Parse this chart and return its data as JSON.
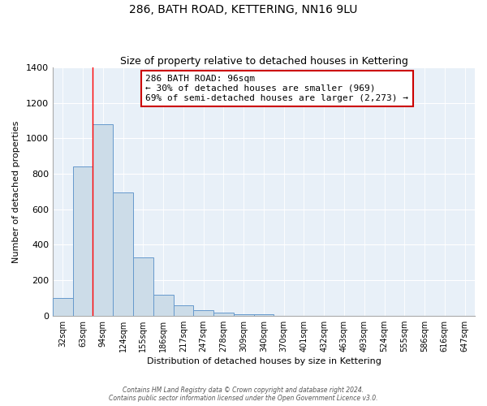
{
  "title": "286, BATH ROAD, KETTERING, NN16 9LU",
  "subtitle": "Size of property relative to detached houses in Kettering",
  "xlabel": "Distribution of detached houses by size in Kettering",
  "ylabel": "Number of detached properties",
  "bar_color": "#ccdce8",
  "bar_edge_color": "#6699cc",
  "background_color": "#e8f0f8",
  "fig_background": "#ffffff",
  "categories": [
    "32sqm",
    "63sqm",
    "94sqm",
    "124sqm",
    "155sqm",
    "186sqm",
    "217sqm",
    "247sqm",
    "278sqm",
    "309sqm",
    "340sqm",
    "370sqm",
    "401sqm",
    "432sqm",
    "463sqm",
    "493sqm",
    "524sqm",
    "555sqm",
    "586sqm",
    "616sqm",
    "647sqm"
  ],
  "values": [
    100,
    840,
    1080,
    695,
    330,
    120,
    60,
    30,
    18,
    10,
    10,
    0,
    0,
    0,
    0,
    0,
    0,
    0,
    0,
    0,
    0
  ],
  "red_line_index": 2,
  "annotation_line1": "286 BATH ROAD: 96sqm",
  "annotation_line2": "← 30% of detached houses are smaller (969)",
  "annotation_line3": "69% of semi-detached houses are larger (2,273) →",
  "annotation_box_color": "#ffffff",
  "annotation_box_edge_color": "#cc0000",
  "ylim": [
    0,
    1400
  ],
  "yticks": [
    0,
    200,
    400,
    600,
    800,
    1000,
    1200,
    1400
  ],
  "footer_line1": "Contains HM Land Registry data © Crown copyright and database right 2024.",
  "footer_line2": "Contains public sector information licensed under the Open Government Licence v3.0."
}
